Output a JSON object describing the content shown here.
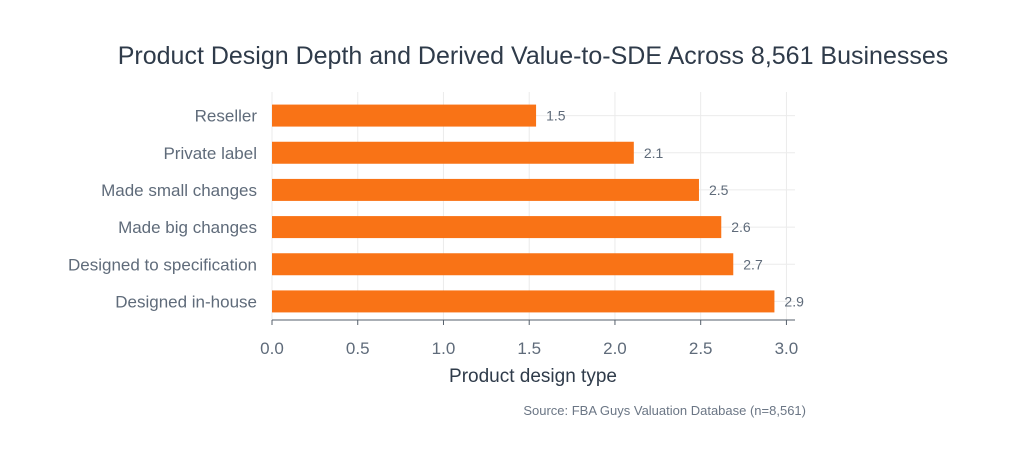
{
  "chart_data": {
    "type": "bar",
    "orientation": "horizontal",
    "title": "Product Design Depth and Derived Value-to-SDE Across 8,561 Businesses",
    "xlabel": "Product design type",
    "ylabel": "",
    "categories": [
      "Reseller",
      "Private label",
      "Made small changes",
      "Made big changes",
      "Designed to specification",
      "Designed in-house"
    ],
    "values": [
      1.54,
      2.11,
      2.49,
      2.62,
      2.69,
      2.93
    ],
    "data_labels": [
      "1.5",
      "2.1",
      "2.5",
      "2.6",
      "2.7",
      "2.9"
    ],
    "xlim": [
      0,
      3.05
    ],
    "xticks": [
      0,
      0.5,
      1,
      1.5,
      2,
      2.5,
      3
    ],
    "xtick_labels": [
      "0.0",
      "0.5",
      "1.0",
      "1.5",
      "2.0",
      "2.5",
      "3.0"
    ],
    "grid": true,
    "bar_color": "#f97316",
    "source": "Source: FBA Guys Valuation Database (n=8,561)"
  }
}
